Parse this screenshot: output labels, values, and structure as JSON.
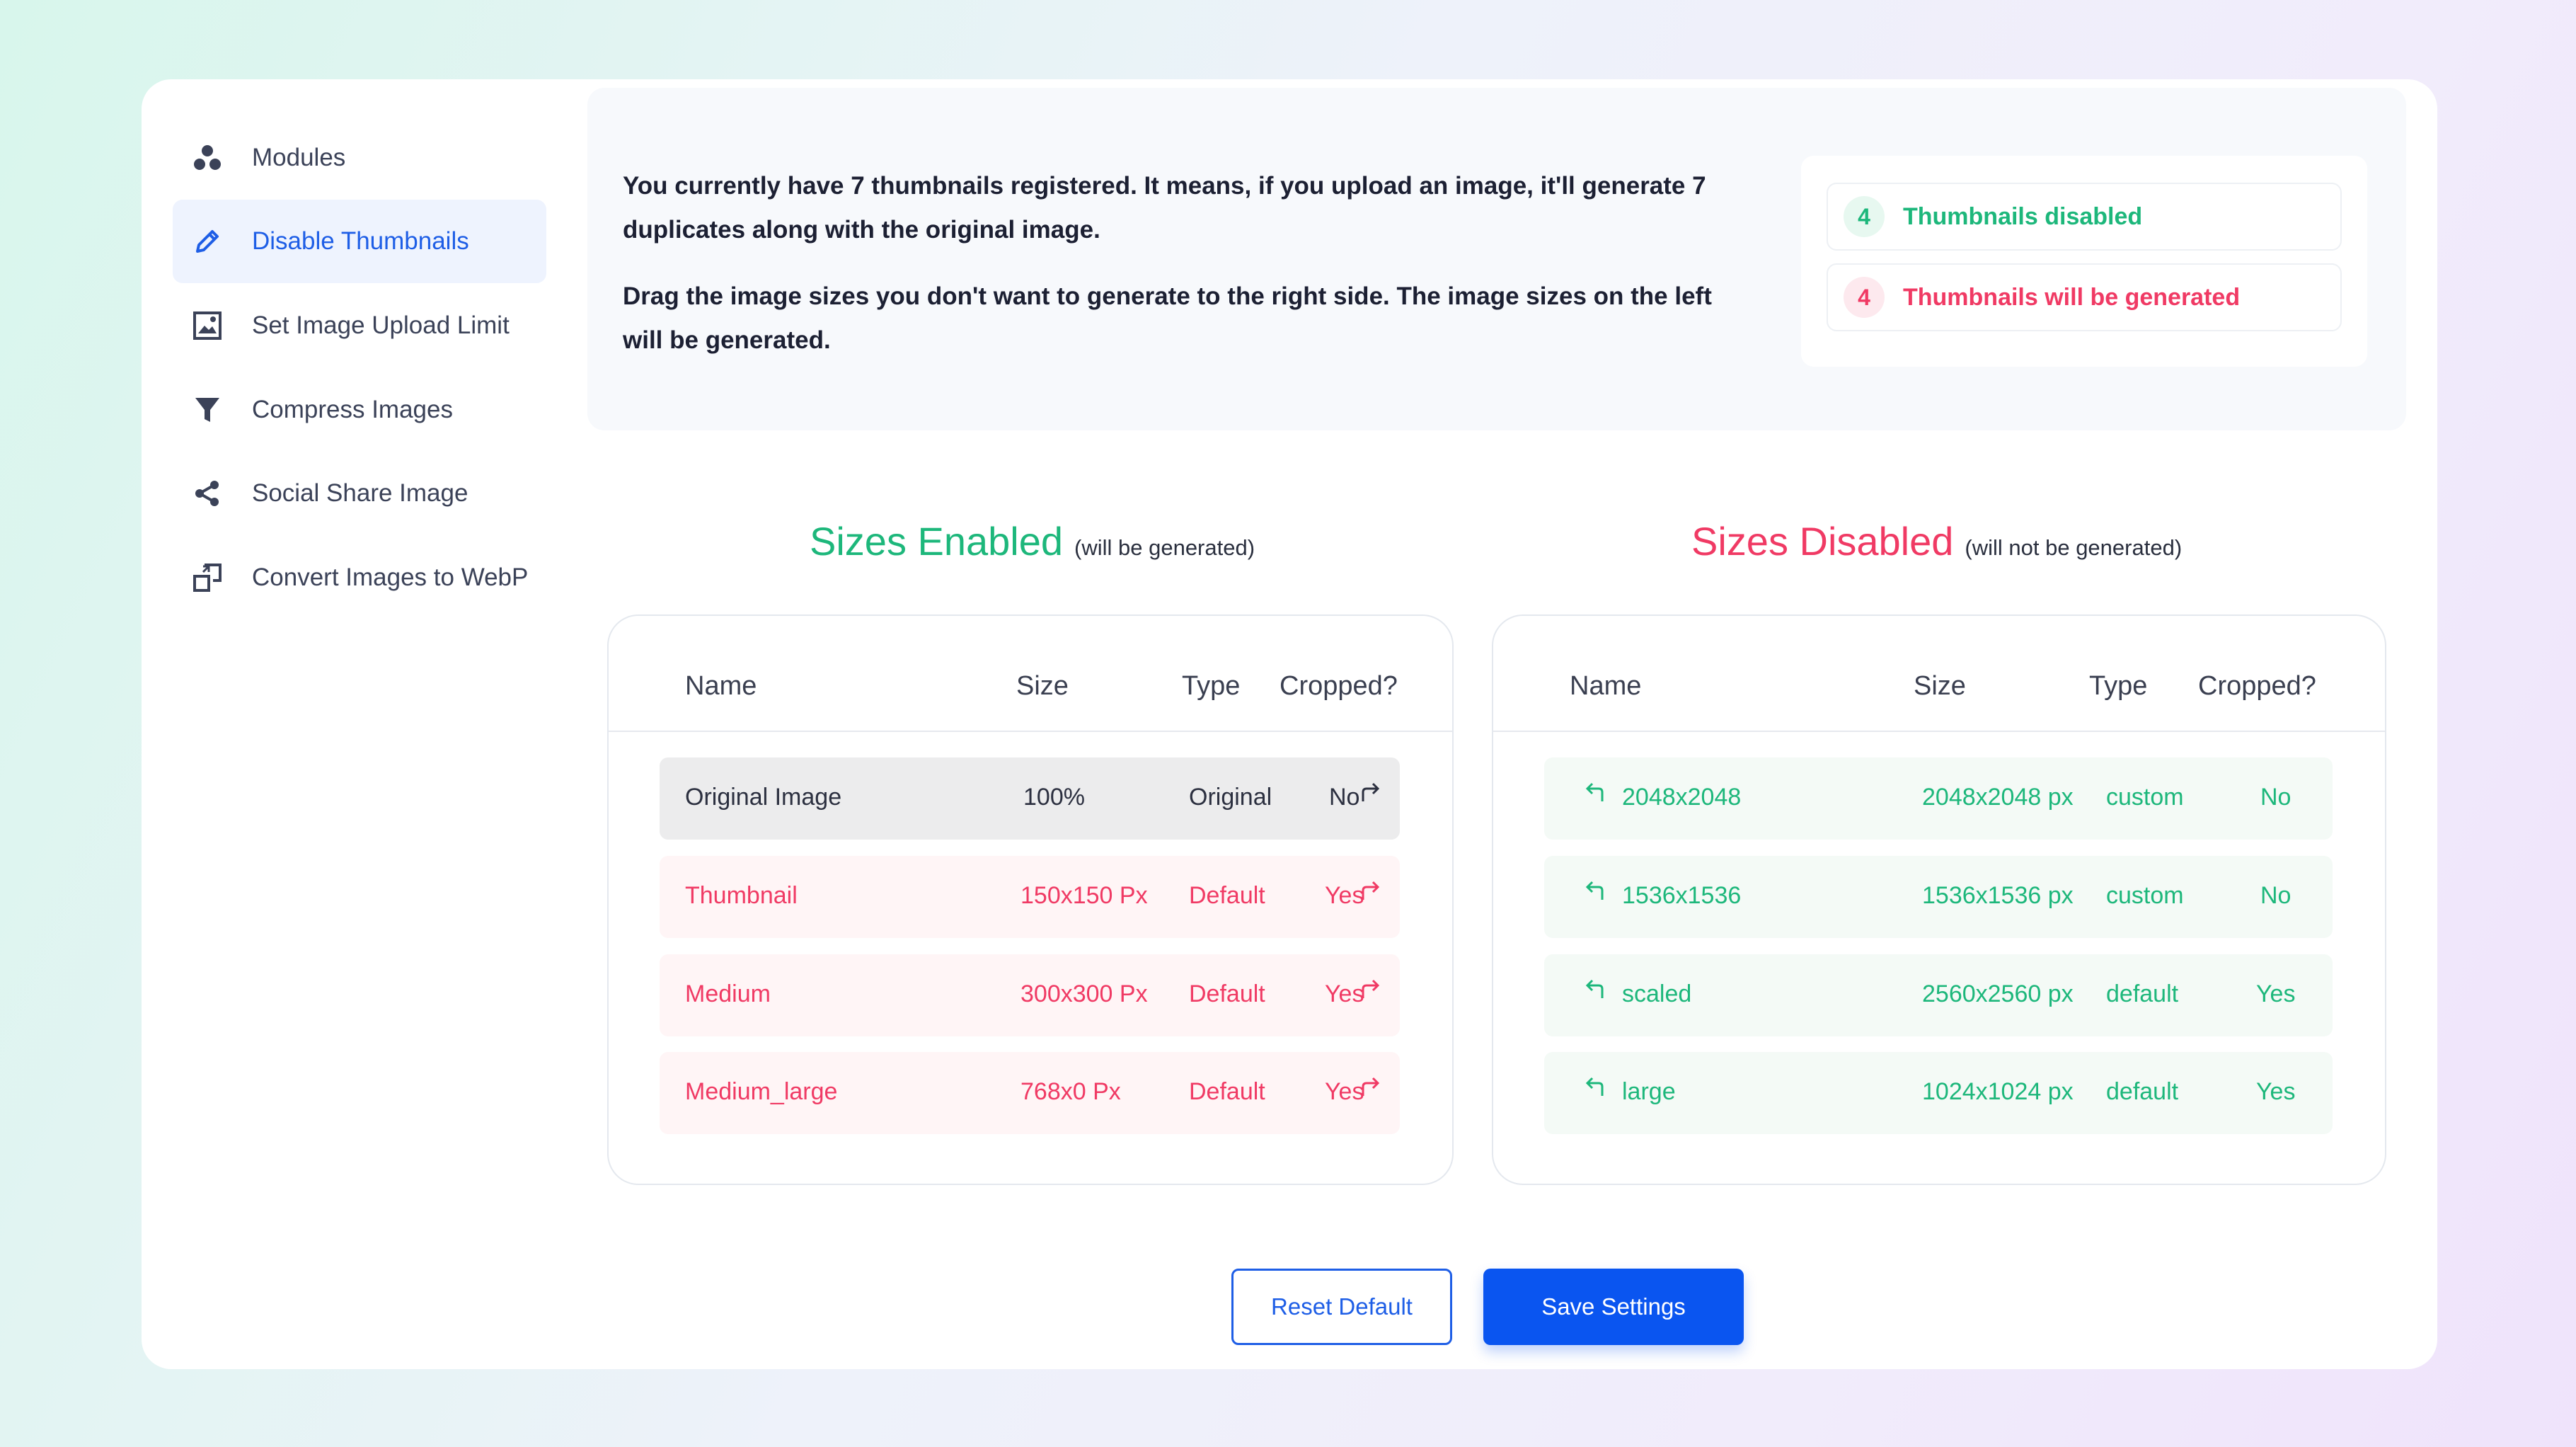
{
  "sidebar": {
    "items": [
      {
        "label": "Modules",
        "icon": "modules-icon",
        "active": false
      },
      {
        "label": "Disable Thumbnails",
        "icon": "pencil-icon",
        "active": true
      },
      {
        "label": "Set Image Upload Limit",
        "icon": "image-icon",
        "active": false
      },
      {
        "label": "Compress Images",
        "icon": "funnel-icon",
        "active": false
      },
      {
        "label": "Social Share Image",
        "icon": "share-icon",
        "active": false
      },
      {
        "label": "Convert Images to WebP",
        "icon": "convert-icon",
        "active": false
      }
    ]
  },
  "info": {
    "line1_pre": "You currently have ",
    "line1_bold": "7 thumbnails",
    "line1_post": " registered. It means, if you upload an image, it'll generate 7 duplicates along with the original image.",
    "line2": "Drag the image sizes you don't want to generate to the right side. The image sizes on the left will be generated."
  },
  "stats": {
    "disabled_count": "4",
    "disabled_label": "Thumbnails disabled",
    "generated_count": "4",
    "generated_label": "Thumbnails will be generated"
  },
  "enabled": {
    "title": "Sizes Enabled",
    "subtitle": "(will be generated)",
    "headers": {
      "name": "Name",
      "size": "Size",
      "type": "Type",
      "cropped": "Cropped?"
    },
    "rows": [
      {
        "name": "Original Image",
        "size": "100%",
        "type": "Original",
        "cropped": "No"
      },
      {
        "name": "Thumbnail",
        "size": "150x150 Px",
        "type": "Default",
        "cropped": "Yes"
      },
      {
        "name": "Medium",
        "size": "300x300 Px",
        "type": "Default",
        "cropped": "Yes"
      },
      {
        "name": "Medium_large",
        "size": "768x0 Px",
        "type": "Default",
        "cropped": "Yes"
      }
    ]
  },
  "disabled": {
    "title": "Sizes Disabled",
    "subtitle": "(will not be generated)",
    "headers": {
      "name": "Name",
      "size": "Size",
      "type": "Type",
      "cropped": "Cropped?"
    },
    "rows": [
      {
        "name": "2048x2048",
        "size": "2048x2048 px",
        "type": "custom",
        "cropped": "No"
      },
      {
        "name": "1536x1536",
        "size": "1536x1536 px",
        "type": "custom",
        "cropped": "No"
      },
      {
        "name": "scaled",
        "size": "2560x2560 px",
        "type": "default",
        "cropped": "Yes"
      },
      {
        "name": "large",
        "size": "1024x1024 px",
        "type": "default",
        "cropped": "Yes"
      }
    ]
  },
  "buttons": {
    "reset": "Reset Default",
    "save": "Save Settings"
  },
  "colors": {
    "accent": "#0a55f0",
    "enabled_green": "#1db77b",
    "disabled_red": "#f03a64"
  }
}
